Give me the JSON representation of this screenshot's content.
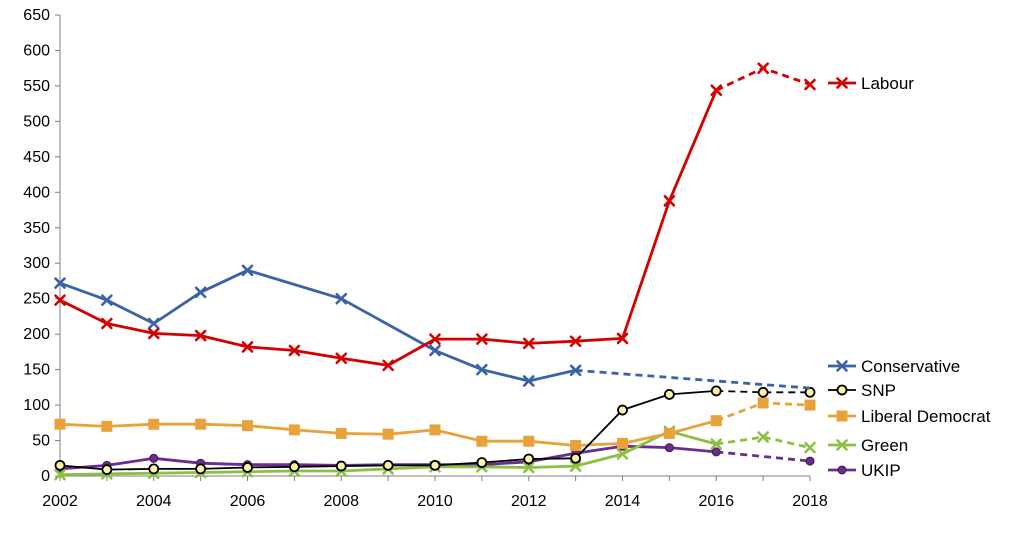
{
  "chart_data": {
    "type": "line",
    "title": "",
    "xlabel": "",
    "ylabel": "",
    "x": [
      2002,
      2003,
      2004,
      2005,
      2006,
      2007,
      2008,
      2009,
      2010,
      2011,
      2012,
      2013,
      2014,
      2015,
      2016,
      2017,
      2018
    ],
    "xlim": [
      2002,
      2018
    ],
    "xticks": [
      2002,
      2004,
      2006,
      2008,
      2010,
      2012,
      2014,
      2016,
      2018
    ],
    "ylim": [
      0,
      650
    ],
    "yticks": [
      0,
      50,
      100,
      150,
      200,
      250,
      300,
      350,
      400,
      450,
      500,
      550,
      600,
      650
    ],
    "grid": false,
    "legend_position": "right",
    "series": [
      {
        "name": "Labour",
        "color": "#d30000",
        "marker": "x",
        "values": [
          {
            "x": 2002,
            "y": 248
          },
          {
            "x": 2003,
            "y": 215
          },
          {
            "x": 2004,
            "y": 201
          },
          {
            "x": 2005,
            "y": 198
          },
          {
            "x": 2006,
            "y": 182
          },
          {
            "x": 2007,
            "y": 177
          },
          {
            "x": 2008,
            "y": 166
          },
          {
            "x": 2009,
            "y": 156
          },
          {
            "x": 2010,
            "y": 193
          },
          {
            "x": 2011,
            "y": 193
          },
          {
            "x": 2012,
            "y": 187
          },
          {
            "x": 2013,
            "y": 190
          },
          {
            "x": 2014,
            "y": 194
          },
          {
            "x": 2015,
            "y": 388
          },
          {
            "x": 2016,
            "y": 544
          },
          {
            "x": 2017,
            "y": 575
          },
          {
            "x": 2018,
            "y": 552
          }
        ],
        "dashed_from": 2016
      },
      {
        "name": "Conservative",
        "color": "#3a62a7",
        "marker": "x",
        "values": [
          {
            "x": 2002,
            "y": 272
          },
          {
            "x": 2003,
            "y": 248
          },
          {
            "x": 2004,
            "y": 215
          },
          {
            "x": 2005,
            "y": 259
          },
          {
            "x": 2006,
            "y": 290
          },
          {
            "x": 2008,
            "y": 250
          },
          {
            "x": 2010,
            "y": 177
          },
          {
            "x": 2011,
            "y": 150
          },
          {
            "x": 2012,
            "y": 134
          },
          {
            "x": 2013,
            "y": 149
          },
          {
            "x": 2018,
            "y": 124
          }
        ],
        "dashed_from": 2013
      },
      {
        "name": "SNP",
        "color": "#000000",
        "marker": "circle-open",
        "marker_fill": "#fff1a8",
        "values": [
          {
            "x": 2002,
            "y": 15
          },
          {
            "x": 2003,
            "y": 9
          },
          {
            "x": 2004,
            "y": 10
          },
          {
            "x": 2005,
            "y": 10
          },
          {
            "x": 2006,
            "y": 12
          },
          {
            "x": 2007,
            "y": 13
          },
          {
            "x": 2008,
            "y": 14
          },
          {
            "x": 2009,
            "y": 15
          },
          {
            "x": 2010,
            "y": 15
          },
          {
            "x": 2011,
            "y": 19
          },
          {
            "x": 2012,
            "y": 24
          },
          {
            "x": 2013,
            "y": 25
          },
          {
            "x": 2014,
            "y": 93
          },
          {
            "x": 2015,
            "y": 115
          },
          {
            "x": 2016,
            "y": 120
          },
          {
            "x": 2017,
            "y": 118
          },
          {
            "x": 2018,
            "y": 118
          }
        ],
        "dashed_from": 2016
      },
      {
        "name": "Liberal Democrat",
        "color": "#e9a23b",
        "marker": "square",
        "values": [
          {
            "x": 2002,
            "y": 73
          },
          {
            "x": 2003,
            "y": 70
          },
          {
            "x": 2004,
            "y": 73
          },
          {
            "x": 2005,
            "y": 73
          },
          {
            "x": 2006,
            "y": 71
          },
          {
            "x": 2007,
            "y": 65
          },
          {
            "x": 2008,
            "y": 60
          },
          {
            "x": 2009,
            "y": 59
          },
          {
            "x": 2010,
            "y": 65
          },
          {
            "x": 2011,
            "y": 49
          },
          {
            "x": 2012,
            "y": 49
          },
          {
            "x": 2013,
            "y": 43
          },
          {
            "x": 2014,
            "y": 46
          },
          {
            "x": 2015,
            "y": 60
          },
          {
            "x": 2016,
            "y": 78
          },
          {
            "x": 2017,
            "y": 103
          },
          {
            "x": 2018,
            "y": 100
          }
        ],
        "dashed_from": 2016
      },
      {
        "name": "Green",
        "color": "#8cc042",
        "marker": "x",
        "values": [
          {
            "x": 2002,
            "y": 2
          },
          {
            "x": 2003,
            "y": 3
          },
          {
            "x": 2004,
            "y": 4
          },
          {
            "x": 2005,
            "y": 5
          },
          {
            "x": 2006,
            "y": 6
          },
          {
            "x": 2007,
            "y": 7
          },
          {
            "x": 2008,
            "y": 7
          },
          {
            "x": 2009,
            "y": 10
          },
          {
            "x": 2010,
            "y": 13
          },
          {
            "x": 2011,
            "y": 13
          },
          {
            "x": 2012,
            "y": 12
          },
          {
            "x": 2013,
            "y": 14
          },
          {
            "x": 2014,
            "y": 31
          },
          {
            "x": 2015,
            "y": 63
          },
          {
            "x": 2016,
            "y": 45
          },
          {
            "x": 2017,
            "y": 55
          },
          {
            "x": 2018,
            "y": 40
          }
        ],
        "dashed_from": 2016
      },
      {
        "name": "UKIP",
        "color": "#6a2c8e",
        "marker": "circle",
        "values": [
          {
            "x": 2002,
            "y": 10
          },
          {
            "x": 2003,
            "y": 15
          },
          {
            "x": 2004,
            "y": 25
          },
          {
            "x": 2005,
            "y": 18
          },
          {
            "x": 2006,
            "y": 16
          },
          {
            "x": 2007,
            "y": 16
          },
          {
            "x": 2008,
            "y": 15
          },
          {
            "x": 2009,
            "y": 16
          },
          {
            "x": 2010,
            "y": 16
          },
          {
            "x": 2011,
            "y": 16
          },
          {
            "x": 2012,
            "y": 20
          },
          {
            "x": 2013,
            "y": 32
          },
          {
            "x": 2014,
            "y": 42
          },
          {
            "x": 2015,
            "y": 40
          },
          {
            "x": 2016,
            "y": 34
          },
          {
            "x": 2018,
            "y": 21
          }
        ],
        "dashed_from": 2016
      }
    ]
  }
}
